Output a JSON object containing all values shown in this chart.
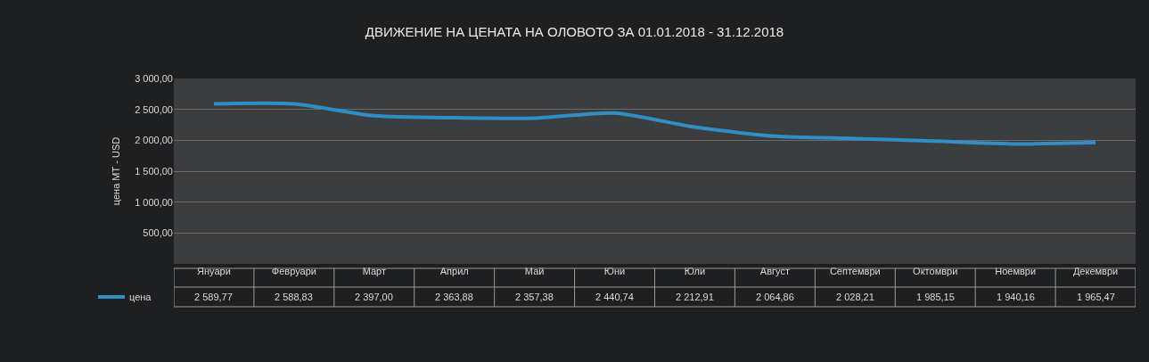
{
  "chart_data": {
    "type": "line",
    "title": "ДВИЖЕНИЕ НА ЦЕНАТА НА ОЛОВОТО ЗА 01.01.2018 - 31.12.2018",
    "ylabel": "цена МТ - USD",
    "categories": [
      "Януари",
      "Февруари",
      "Март",
      "Април",
      "Май",
      "Юни",
      "Юли",
      "Август",
      "Септември",
      "Октомври",
      "Ноември",
      "Декември"
    ],
    "series": [
      {
        "name": "цена",
        "color": "#2f8fc4",
        "values": [
          2589.77,
          2588.83,
          2397.0,
          2363.88,
          2357.38,
          2440.74,
          2212.91,
          2064.86,
          2028.21,
          1985.15,
          1940.16,
          1965.47
        ],
        "value_labels": [
          "2 589,77",
          "2 588,83",
          "2 397,00",
          "2 363,88",
          "2 357,38",
          "2 440,74",
          "2 212,91",
          "2 064,86",
          "2 028,21",
          "1 985,15",
          "1 940,16",
          "1 965,47"
        ]
      }
    ],
    "ylim": [
      0,
      3000
    ],
    "yticks": [
      {
        "value": 500,
        "label": "500,00"
      },
      {
        "value": 1000,
        "label": "1 000,00"
      },
      {
        "value": 1500,
        "label": "1 500,00"
      },
      {
        "value": 2000,
        "label": "2 000,00"
      },
      {
        "value": 2500,
        "label": "2 500,00"
      },
      {
        "value": 3000,
        "label": "3 000,00"
      }
    ],
    "grid": "y",
    "legend": "bottom left",
    "marker": "none",
    "line_style": "solid"
  }
}
